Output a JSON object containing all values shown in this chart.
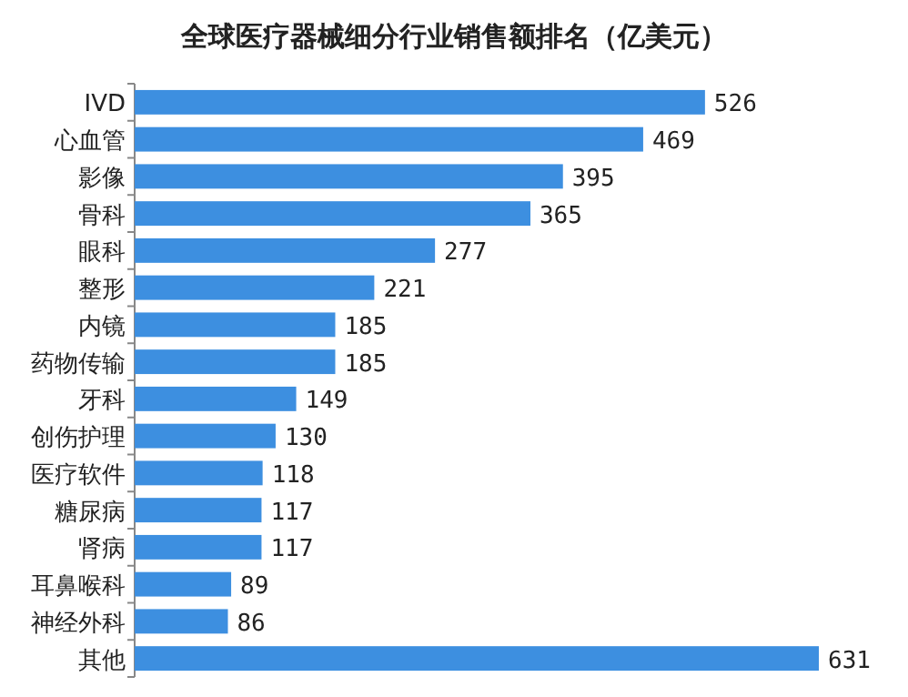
{
  "chart_data": {
    "type": "bar",
    "orientation": "horizontal",
    "title": "全球医疗器械细分行业销售额排名（亿美元）",
    "categories": [
      "IVD",
      "心血管",
      "影像",
      "骨科",
      "眼科",
      "整形",
      "内镜",
      "药物传输",
      "牙科",
      "创伤护理",
      "医疗软件",
      "糖尿病",
      "肾病",
      "耳鼻喉科",
      "神经外科",
      "其他"
    ],
    "values": [
      526,
      469,
      395,
      365,
      277,
      221,
      185,
      185,
      149,
      130,
      118,
      117,
      117,
      89,
      86,
      631
    ],
    "color": "#3d8fe0",
    "data_labels": true
  }
}
